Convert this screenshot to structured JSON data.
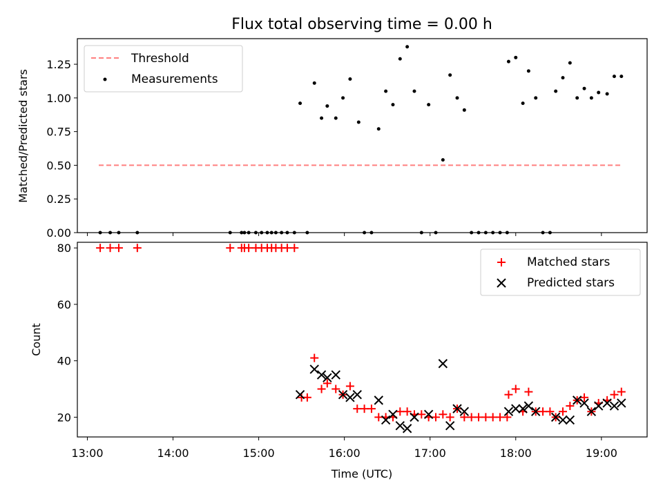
{
  "figure": {
    "title": "Flux total observing time = 0.00 h"
  },
  "chart_data": [
    {
      "type": "scatter",
      "ylabel": "Matched/Predicted stars",
      "xlabel": "",
      "ylim": [
        0,
        1.44
      ],
      "xlim": [
        "12:53",
        "19:32"
      ],
      "yticks": [
        0.0,
        0.25,
        0.5,
        0.75,
        1.0,
        1.25
      ],
      "yticklabels": [
        "0.00",
        "0.25",
        "0.50",
        "0.75",
        "1.00",
        "1.25"
      ],
      "grid": false,
      "legend_position": "top-left",
      "threshold": {
        "name": "Threshold",
        "value": 0.5,
        "x": [
          "13:08",
          "19:15"
        ],
        "color": "#ff7f7f",
        "style": "dashed"
      },
      "series": [
        {
          "name": "Measurements",
          "color": "#000000",
          "marker": "dot",
          "points": [
            [
              "13:09",
              0
            ],
            [
              "13:16",
              0
            ],
            [
              "13:22",
              0
            ],
            [
              "13:35",
              0
            ],
            [
              "14:40",
              0
            ],
            [
              "14:48",
              0
            ],
            [
              "14:50",
              0
            ],
            [
              "14:53",
              0
            ],
            [
              "14:58",
              0
            ],
            [
              "15:02",
              0
            ],
            [
              "15:06",
              0
            ],
            [
              "15:09",
              0
            ],
            [
              "15:12",
              0
            ],
            [
              "15:16",
              0
            ],
            [
              "15:20",
              0
            ],
            [
              "15:25",
              0
            ],
            [
              "15:29",
              0.96
            ],
            [
              "15:34",
              0
            ],
            [
              "15:39",
              1.11
            ],
            [
              "15:44",
              0.85
            ],
            [
              "15:48",
              0.94
            ],
            [
              "15:54",
              0.85
            ],
            [
              "15:59",
              1.0
            ],
            [
              "16:04",
              1.14
            ],
            [
              "16:10",
              0.82
            ],
            [
              "16:14",
              0
            ],
            [
              "16:19",
              0
            ],
            [
              "16:24",
              0.77
            ],
            [
              "16:29",
              1.05
            ],
            [
              "16:34",
              0.95
            ],
            [
              "16:39",
              1.29
            ],
            [
              "16:44",
              1.38
            ],
            [
              "16:49",
              1.05
            ],
            [
              "16:54",
              0
            ],
            [
              "16:59",
              0.95
            ],
            [
              "17:04",
              0
            ],
            [
              "17:09",
              0.54
            ],
            [
              "17:14",
              1.17
            ],
            [
              "17:19",
              1.0
            ],
            [
              "17:24",
              0.91
            ],
            [
              "17:29",
              0
            ],
            [
              "17:34",
              0
            ],
            [
              "17:39",
              0
            ],
            [
              "17:44",
              0
            ],
            [
              "17:49",
              0
            ],
            [
              "17:54",
              0
            ],
            [
              "17:55",
              1.27
            ],
            [
              "18:00",
              1.3
            ],
            [
              "18:05",
              0.96
            ],
            [
              "18:09",
              1.2
            ],
            [
              "18:14",
              1.0
            ],
            [
              "18:19",
              0
            ],
            [
              "18:24",
              0
            ],
            [
              "18:28",
              1.05
            ],
            [
              "18:33",
              1.15
            ],
            [
              "18:38",
              1.26
            ],
            [
              "18:43",
              1.0
            ],
            [
              "18:48",
              1.07
            ],
            [
              "18:53",
              1.0
            ],
            [
              "18:58",
              1.04
            ],
            [
              "19:04",
              1.03
            ],
            [
              "19:09",
              1.16
            ],
            [
              "19:14",
              1.16
            ]
          ]
        }
      ]
    },
    {
      "type": "scatter",
      "ylabel": "Count",
      "xlabel": "Time (UTC)",
      "ylim": [
        13,
        82
      ],
      "xlim": [
        "12:53",
        "19:32"
      ],
      "yticks": [
        20,
        40,
        60,
        80
      ],
      "yticklabels": [
        "20",
        "40",
        "60",
        "80"
      ],
      "xticks": [
        "13:00",
        "14:00",
        "15:00",
        "16:00",
        "17:00",
        "18:00",
        "19:00"
      ],
      "xticklabels": [
        "13:00",
        "14:00",
        "15:00",
        "16:00",
        "17:00",
        "18:00",
        "19:00"
      ],
      "grid": false,
      "legend_position": "top-right",
      "series": [
        {
          "name": "Matched stars",
          "color": "#ff0000",
          "marker": "plus",
          "points": [
            [
              "13:09",
              80
            ],
            [
              "13:16",
              80
            ],
            [
              "13:22",
              80
            ],
            [
              "13:35",
              80
            ],
            [
              "14:40",
              80
            ],
            [
              "14:48",
              80
            ],
            [
              "14:50",
              80
            ],
            [
              "14:53",
              80
            ],
            [
              "14:58",
              80
            ],
            [
              "15:02",
              80
            ],
            [
              "15:06",
              80
            ],
            [
              "15:09",
              80
            ],
            [
              "15:12",
              80
            ],
            [
              "15:16",
              80
            ],
            [
              "15:20",
              80
            ],
            [
              "15:25",
              80
            ],
            [
              "15:30",
              27
            ],
            [
              "15:34",
              27
            ],
            [
              "15:39",
              41
            ],
            [
              "15:44",
              30
            ],
            [
              "15:48",
              32
            ],
            [
              "15:54",
              30
            ],
            [
              "15:59",
              28
            ],
            [
              "16:04",
              31
            ],
            [
              "16:09",
              23
            ],
            [
              "16:14",
              23
            ],
            [
              "16:19",
              23
            ],
            [
              "16:24",
              20
            ],
            [
              "16:29",
              20
            ],
            [
              "16:34",
              20
            ],
            [
              "16:39",
              22
            ],
            [
              "16:44",
              22
            ],
            [
              "16:49",
              21
            ],
            [
              "16:54",
              21
            ],
            [
              "16:59",
              20
            ],
            [
              "17:04",
              20
            ],
            [
              "17:09",
              21
            ],
            [
              "17:14",
              20
            ],
            [
              "17:19",
              23
            ],
            [
              "17:24",
              20
            ],
            [
              "17:29",
              20
            ],
            [
              "17:34",
              20
            ],
            [
              "17:39",
              20
            ],
            [
              "17:44",
              20
            ],
            [
              "17:49",
              20
            ],
            [
              "17:54",
              20
            ],
            [
              "17:55",
              28
            ],
            [
              "18:00",
              30
            ],
            [
              "18:05",
              22
            ],
            [
              "18:09",
              29
            ],
            [
              "18:14",
              22
            ],
            [
              "18:19",
              22
            ],
            [
              "18:24",
              22
            ],
            [
              "18:28",
              20
            ],
            [
              "18:33",
              22
            ],
            [
              "18:38",
              24
            ],
            [
              "18:43",
              26
            ],
            [
              "18:48",
              27
            ],
            [
              "18:53",
              22
            ],
            [
              "18:58",
              25
            ],
            [
              "19:04",
              26
            ],
            [
              "19:09",
              28
            ],
            [
              "19:14",
              29
            ]
          ]
        },
        {
          "name": "Predicted stars",
          "color": "#000000",
          "marker": "x",
          "points": [
            [
              "15:29",
              28
            ],
            [
              "15:39",
              37
            ],
            [
              "15:44",
              35
            ],
            [
              "15:48",
              34
            ],
            [
              "15:54",
              35
            ],
            [
              "15:59",
              28
            ],
            [
              "16:04",
              27
            ],
            [
              "16:09",
              28
            ],
            [
              "16:24",
              26
            ],
            [
              "16:29",
              19
            ],
            [
              "16:34",
              21
            ],
            [
              "16:39",
              17
            ],
            [
              "16:44",
              16
            ],
            [
              "16:49",
              20
            ],
            [
              "16:59",
              21
            ],
            [
              "17:09",
              39
            ],
            [
              "17:14",
              17
            ],
            [
              "17:19",
              23
            ],
            [
              "17:24",
              22
            ],
            [
              "17:55",
              22
            ],
            [
              "18:00",
              23
            ],
            [
              "18:05",
              23
            ],
            [
              "18:09",
              24
            ],
            [
              "18:14",
              22
            ],
            [
              "18:28",
              20
            ],
            [
              "18:33",
              19
            ],
            [
              "18:38",
              19
            ],
            [
              "18:43",
              26
            ],
            [
              "18:48",
              25
            ],
            [
              "18:53",
              22
            ],
            [
              "18:58",
              24
            ],
            [
              "19:04",
              25
            ],
            [
              "19:09",
              24
            ],
            [
              "19:14",
              25
            ]
          ]
        }
      ]
    }
  ]
}
